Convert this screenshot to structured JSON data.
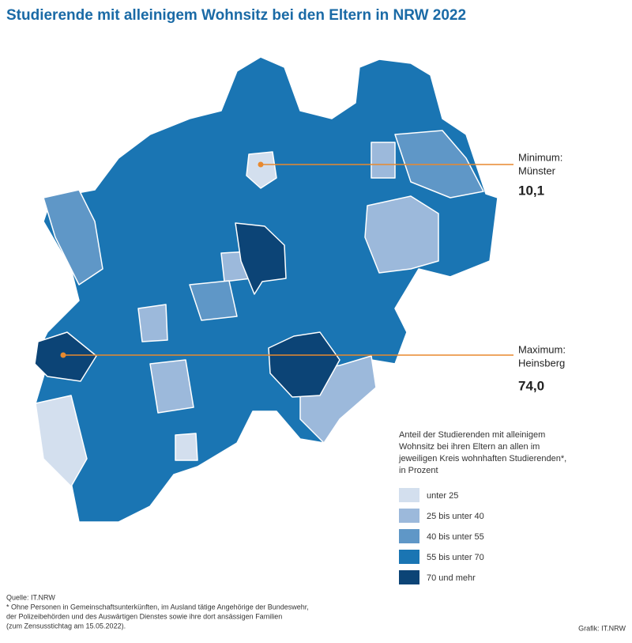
{
  "title": "Studierende mit alleinigem Wohnsitz bei den Eltern in NRW 2022",
  "callouts": [
    {
      "heading": "Minimum:",
      "name": "Münster",
      "value": "10,1"
    },
    {
      "heading": "Maximum:",
      "name": "Heinsberg",
      "value": "74,0"
    }
  ],
  "legend": {
    "title_lines": [
      "Anteil der Studierenden mit alleinigem",
      "Wohnsitz bei ihren Eltern an allen im",
      "jeweiligen Kreis wohnhaften Studierenden*,",
      "in Prozent"
    ],
    "items": [
      {
        "label": "unter 25",
        "color": "#d3dfee"
      },
      {
        "label": "25 bis unter 40",
        "color": "#9cb9db"
      },
      {
        "label": "40 bis unter 55",
        "color": "#5f97c7"
      },
      {
        "label": "55 bis unter 70",
        "color": "#1a75b3"
      },
      {
        "label": "70 und mehr",
        "color": "#0c4476"
      }
    ]
  },
  "footer": {
    "notes": [
      "Quelle: IT.NRW",
      "* Ohne Personen in Gemeinschaftsunterkünften, im Ausland tätige Angehörige der Bundeswehr,",
      "der Polizeibehörden und des Auswärtigen Dienstes sowie ihre dort ansässigen Familien",
      "(zum Zensusstichtag am 15.05.2022)."
    ],
    "credit": "Grafik: IT.NRW"
  }
}
